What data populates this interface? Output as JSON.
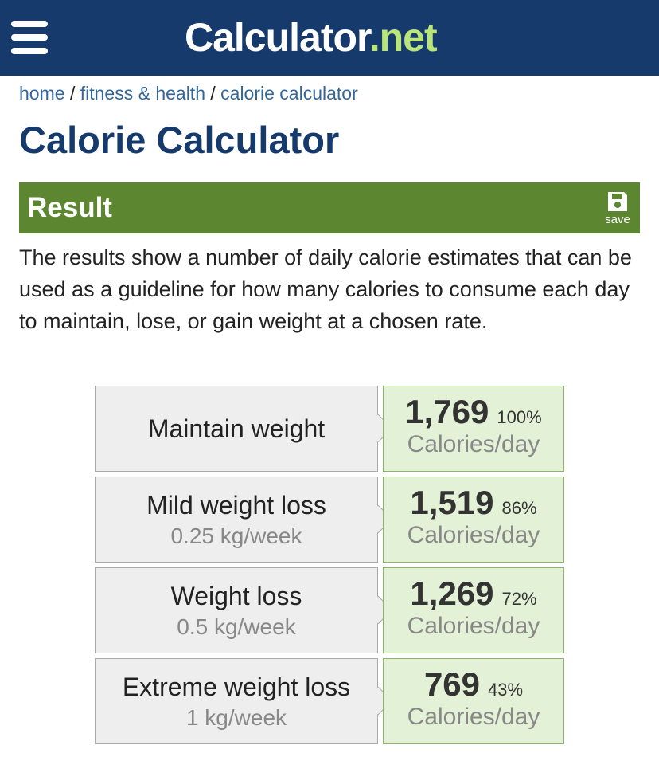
{
  "header": {
    "logo_main": "Calculator",
    "logo_suffix": ".net"
  },
  "breadcrumb": {
    "items": [
      "home",
      "fitness & health",
      "calorie calculator"
    ],
    "separator": "/"
  },
  "title": "Calorie Calculator",
  "result": {
    "heading": "Result",
    "save_label": "save",
    "description": "The results show a number of daily calorie estimates that can be used as a guideline for how many calories to consume each day to maintain, lose, or gain weight at a chosen rate.",
    "unit": "Calories/day",
    "rows": [
      {
        "label": "Maintain weight",
        "calories": "1,769",
        "percent": "100%"
      },
      {
        "label": "Mild weight loss",
        "rate": "0.25 kg/week",
        "calories": "1,519",
        "percent": "86%"
      },
      {
        "label": "Weight loss",
        "rate": "0.5 kg/week",
        "calories": "1,269",
        "percent": "72%"
      },
      {
        "label": "Extreme weight loss",
        "rate": "1 kg/week",
        "calories": "769",
        "percent": "43%"
      }
    ]
  }
}
